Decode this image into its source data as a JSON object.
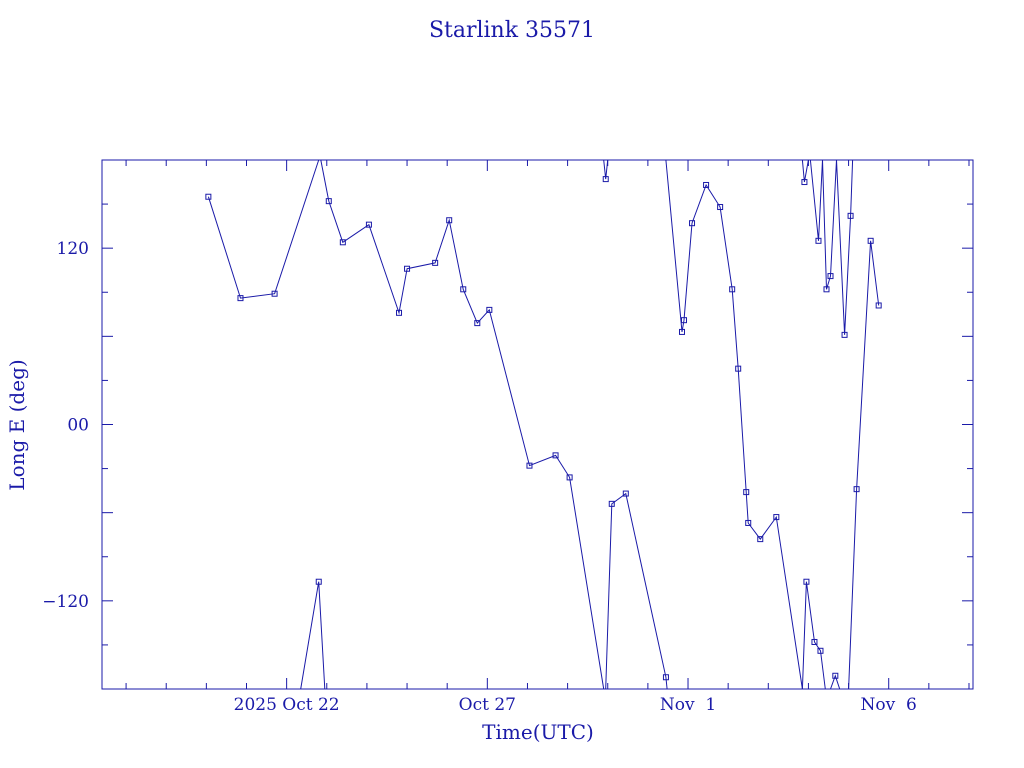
{
  "chart_data": {
    "type": "line",
    "title": "Starlink 35571",
    "xlabel": "Time(UTC)",
    "ylabel": "Long E (deg)",
    "x_unit": "days since 2025 Oct 22 00:00 UTC",
    "xlim": [
      -4.6,
      17.1
    ],
    "ylim": [
      -180,
      180
    ],
    "x_ticks": [
      {
        "x": 0,
        "label": "2025 Oct 22"
      },
      {
        "x": 5,
        "label": "Oct 27"
      },
      {
        "x": 10,
        "label": "Nov  1"
      },
      {
        "x": 15,
        "label": "Nov  6"
      }
    ],
    "y_ticks": [
      {
        "y": 120,
        "label": "120"
      },
      {
        "y": 0,
        "label": "00"
      },
      {
        "y": -120,
        "label": "−120"
      }
    ],
    "color": "#1a1aa8",
    "series": [
      {
        "name": "",
        "points": [
          [
            -1.95,
            155
          ],
          [
            -1.15,
            86
          ],
          [
            -0.3,
            89
          ],
          [
            0.8,
            180
          ]
        ]
      },
      {
        "name": "",
        "points": [
          [
            0.35,
            -180
          ],
          [
            0.8,
            -107
          ],
          [
            0.95,
            -180
          ]
        ]
      },
      {
        "name": "",
        "points": [
          [
            0.85,
            180
          ],
          [
            1.05,
            152
          ],
          [
            1.4,
            124
          ],
          [
            2.05,
            136
          ],
          [
            2.8,
            76
          ],
          [
            3.0,
            106
          ],
          [
            3.7,
            110
          ],
          [
            4.05,
            139
          ],
          [
            4.4,
            92
          ],
          [
            4.75,
            69
          ],
          [
            5.05,
            78
          ],
          [
            6.05,
            -28
          ],
          [
            6.7,
            -21
          ],
          [
            7.05,
            -36
          ],
          [
            7.9,
            -180
          ]
        ]
      },
      {
        "name": "",
        "points": [
          [
            7.9,
            180
          ],
          [
            7.95,
            167
          ],
          [
            8.0,
            180
          ]
        ]
      },
      {
        "name": "",
        "points": [
          [
            7.95,
            -180
          ],
          [
            8.1,
            -54
          ],
          [
            8.45,
            -47
          ],
          [
            9.45,
            -172
          ],
          [
            9.48,
            -180
          ]
        ]
      },
      {
        "name": "",
        "points": [
          [
            9.45,
            180
          ],
          [
            9.85,
            63
          ],
          [
            9.9,
            71
          ],
          [
            10.1,
            137
          ],
          [
            10.45,
            163
          ],
          [
            10.8,
            148
          ],
          [
            11.1,
            92
          ],
          [
            11.25,
            38
          ],
          [
            11.45,
            -46
          ],
          [
            11.5,
            -67
          ],
          [
            11.8,
            -78
          ],
          [
            12.2,
            -63
          ],
          [
            12.85,
            -180
          ]
        ]
      },
      {
        "name": "",
        "points": [
          [
            12.85,
            -180
          ],
          [
            12.95,
            -107
          ],
          [
            13.15,
            -148
          ],
          [
            13.3,
            -154
          ],
          [
            13.42,
            -180
          ]
        ]
      },
      {
        "name": "",
        "points": [
          [
            12.85,
            180
          ],
          [
            12.9,
            165
          ],
          [
            13.0,
            180
          ]
        ]
      },
      {
        "name": "",
        "points": [
          [
            13.05,
            180
          ],
          [
            13.25,
            125
          ],
          [
            13.35,
            180
          ]
        ]
      },
      {
        "name": "",
        "points": [
          [
            13.35,
            180
          ],
          [
            13.45,
            92
          ],
          [
            13.55,
            101
          ],
          [
            13.7,
            180
          ]
        ]
      },
      {
        "name": "",
        "points": [
          [
            13.7,
            180
          ],
          [
            13.9,
            61
          ],
          [
            14.05,
            142
          ],
          [
            14.1,
            180
          ]
        ]
      },
      {
        "name": "",
        "points": [
          [
            13.55,
            -180
          ],
          [
            13.67,
            -171
          ],
          [
            13.78,
            -180
          ]
        ]
      },
      {
        "name": "",
        "points": [
          [
            14.0,
            -180
          ],
          [
            14.2,
            -44
          ],
          [
            14.55,
            125
          ],
          [
            14.75,
            81
          ]
        ]
      }
    ]
  }
}
